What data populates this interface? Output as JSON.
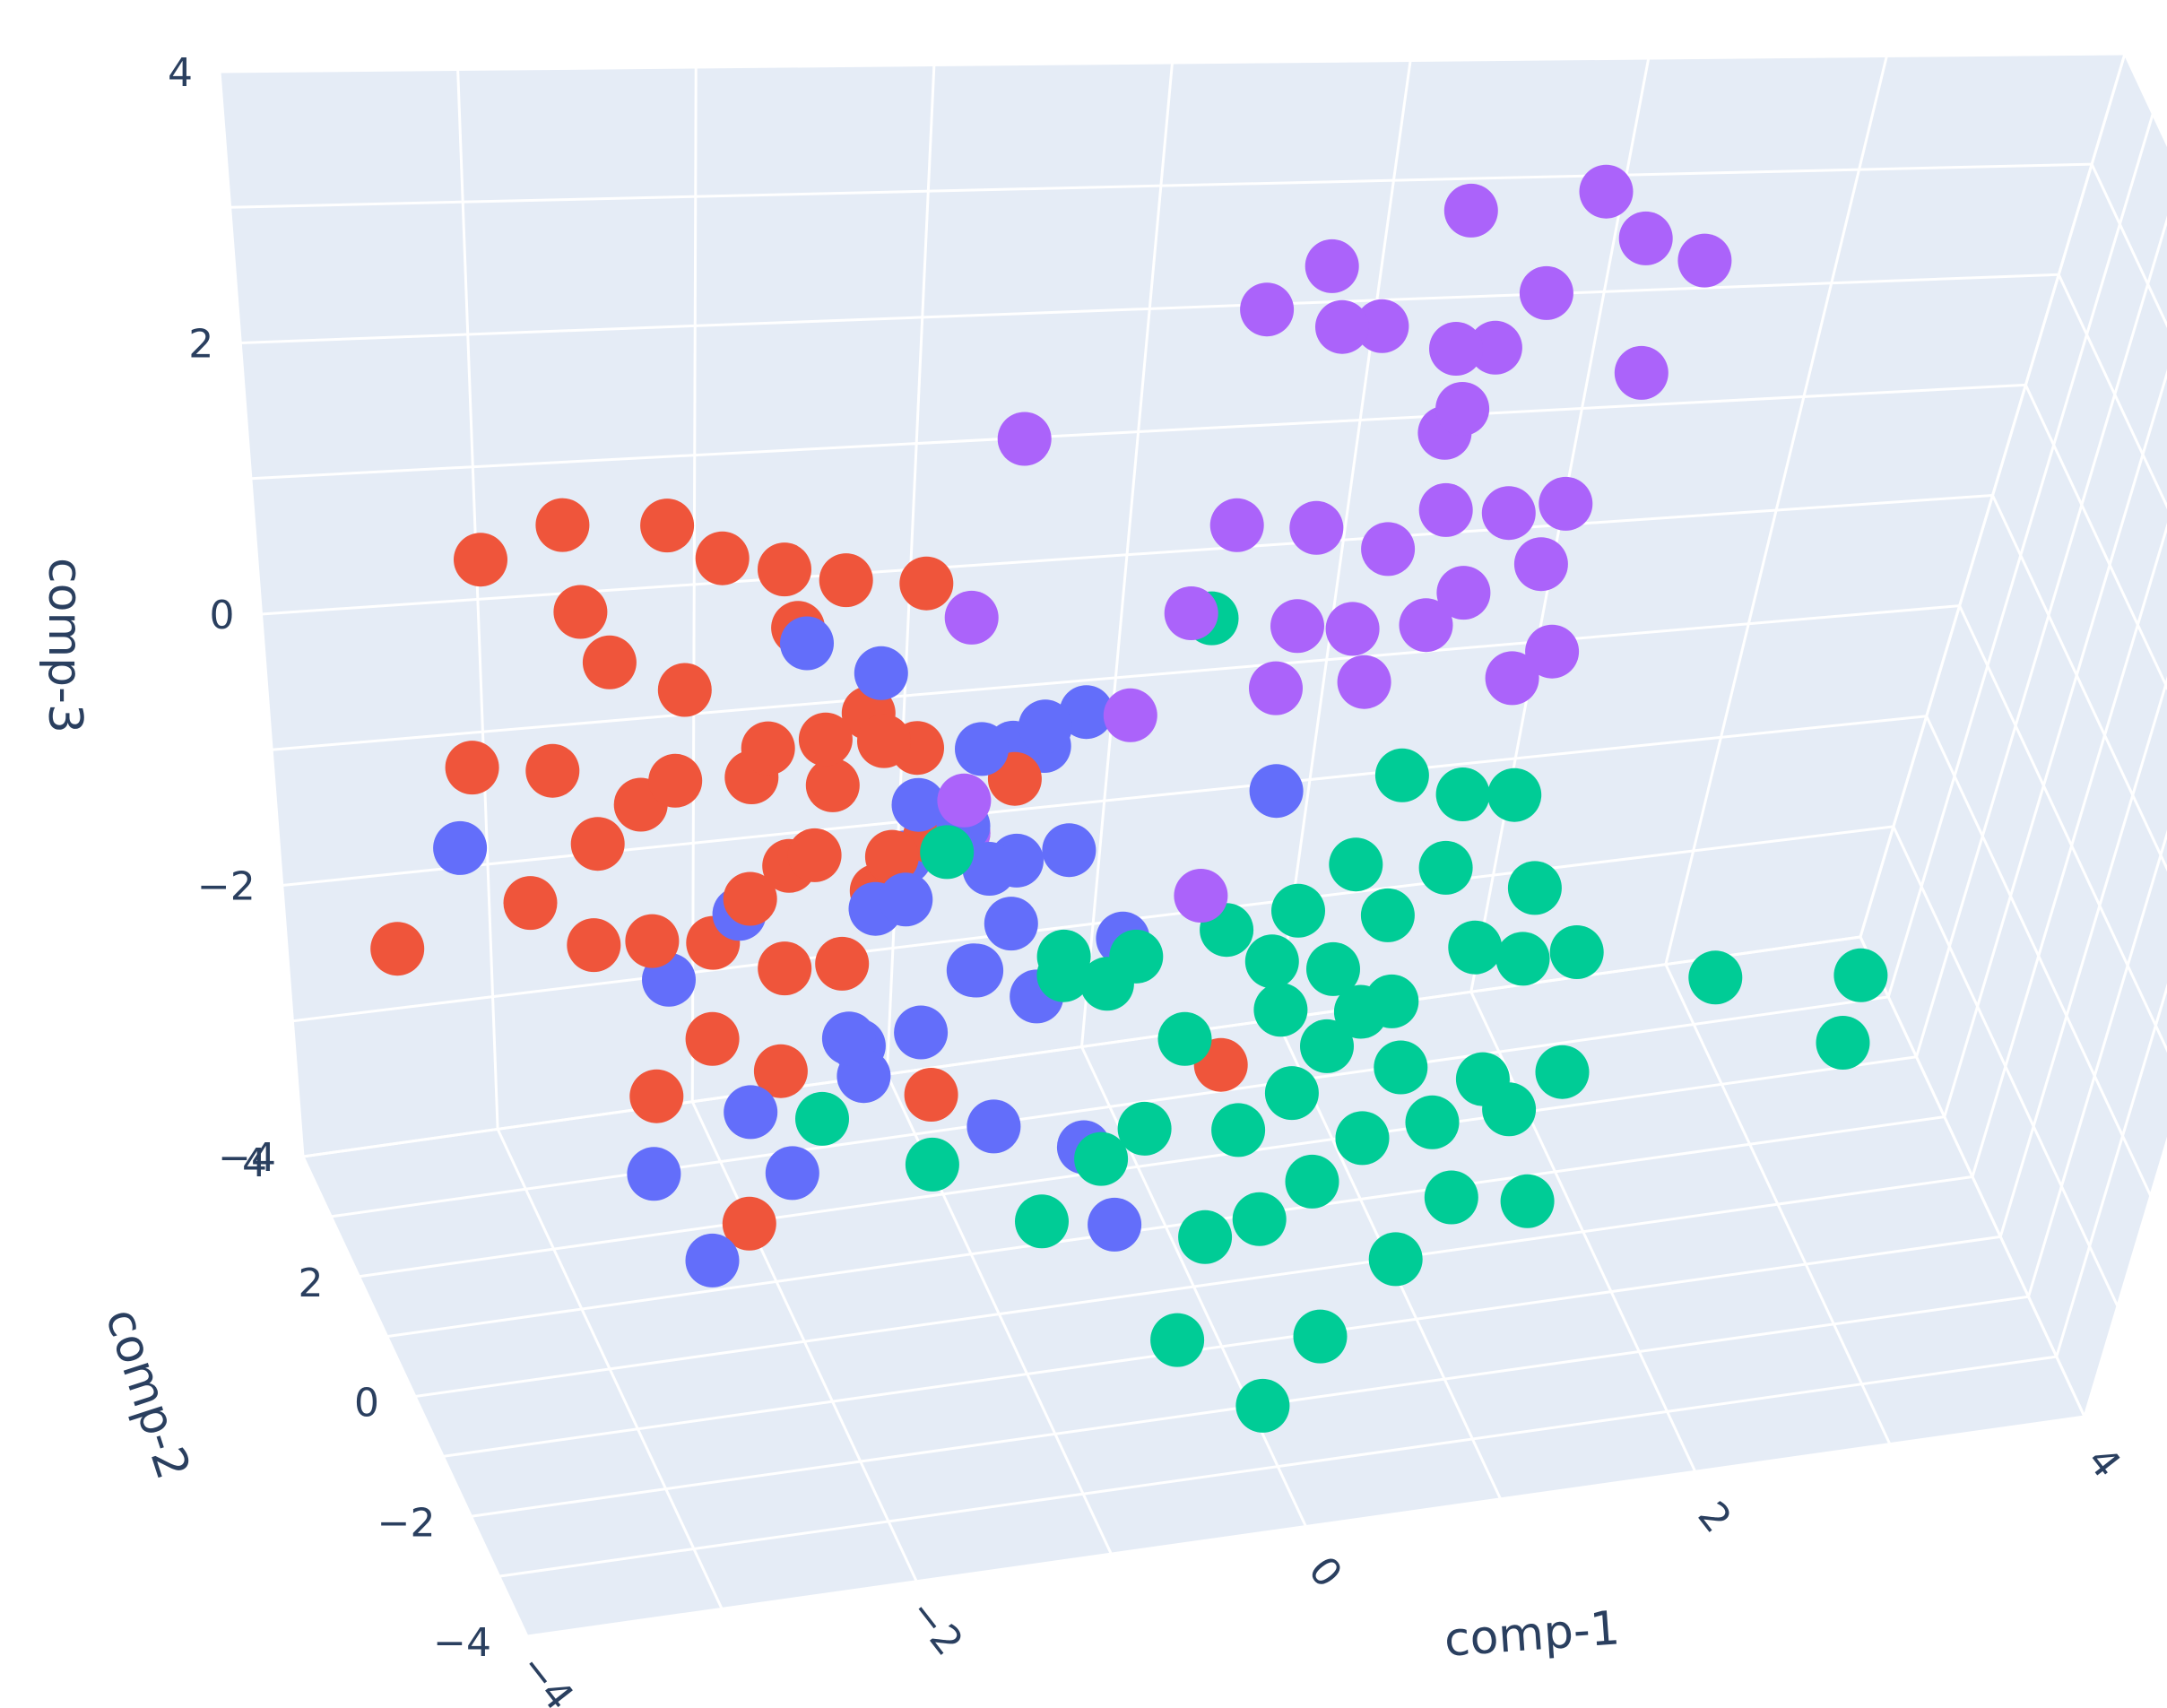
{
  "colors": {
    "pane": "#e5ecf6",
    "grid": "#ffffff",
    "text": "#2a3f5f",
    "cluster_colors": [
      "#636efa",
      "#ef553b",
      "#00cc96",
      "#ab63fa"
    ]
  },
  "chart_data": {
    "type": "scatter",
    "subtype": "scatter3d",
    "axes": {
      "x": {
        "label": "comp-1",
        "range": [
          -4,
          4
        ],
        "ticks": [
          "−4",
          "−2",
          "0",
          "2",
          "4"
        ],
        "tick_values": [
          -4,
          -2,
          0,
          2,
          4
        ]
      },
      "y": {
        "label": "comp-2",
        "range": [
          -4,
          4
        ],
        "ticks": [
          "−4",
          "−2",
          "0",
          "2",
          "4"
        ],
        "tick_values": [
          -4,
          -2,
          0,
          2,
          4
        ]
      },
      "z": {
        "label": "comp-3",
        "range": [
          -4,
          4
        ],
        "ticks": [
          "−4",
          "−2",
          "0",
          "2",
          "4"
        ],
        "tick_values": [
          -4,
          -2,
          0,
          2,
          4
        ]
      }
    },
    "grid": true,
    "legend": "none",
    "series": [
      {
        "color": "#636efa",
        "points": [
          [
            -2.0,
            0.0,
            1.4
          ],
          [
            -1.6,
            0.5,
            0.9
          ],
          [
            -1.2,
            0.0,
            0.5
          ],
          [
            -1.0,
            0.4,
            0.3
          ],
          [
            -0.8,
            0.8,
            0.1
          ],
          [
            -1.3,
            -0.2,
            0.0
          ],
          [
            -1.6,
            -0.5,
            -0.4
          ],
          [
            -1.1,
            0.3,
            -0.6
          ],
          [
            -0.9,
            0.8,
            -0.8
          ],
          [
            -1.2,
            -0.1,
            -1.2
          ],
          [
            -1.5,
            -0.4,
            -1.5
          ],
          [
            -1.8,
            -0.6,
            -1.7
          ],
          [
            -1.0,
            0.2,
            -1.0
          ],
          [
            -0.7,
            0.5,
            -0.6
          ],
          [
            -0.6,
            0.9,
            0.3
          ],
          [
            -0.9,
            0.1,
            0.6
          ],
          [
            -1.4,
            0.6,
            -0.2
          ],
          [
            -1.9,
            -0.8,
            -1.3
          ],
          [
            -2.4,
            -1.0,
            -1.7
          ],
          [
            -1.7,
            0.3,
            -1.9
          ],
          [
            -2.9,
            -1.2,
            -2.0
          ],
          [
            -2.2,
            -1.0,
            -2.2
          ],
          [
            -1.1,
            -0.2,
            -2.4
          ],
          [
            -0.8,
            0.6,
            -1.8
          ],
          [
            -2.3,
            0.1,
            -0.7
          ],
          [
            -2.6,
            0.4,
            -1.3
          ],
          [
            -3.6,
            0.0,
            0.0
          ],
          [
            -2.6,
            -1.0,
            -2.8
          ],
          [
            -0.6,
            0.1,
            -2.8
          ],
          [
            -0.5,
            -0.4,
            -3.2
          ],
          [
            0.3,
            0.8,
            -0.4
          ],
          [
            -0.4,
            0.6,
            -1.4
          ],
          [
            -1.4,
            1.0,
            -0.8
          ],
          [
            -1.7,
            -0.2,
            -0.6
          ],
          [
            -1.3,
            -0.7,
            -0.9
          ]
        ]
      },
      {
        "color": "#ef553b",
        "points": [
          [
            -3.4,
            0.3,
            2.0
          ],
          [
            -3.0,
            0.6,
            2.1
          ],
          [
            -2.6,
            0.1,
            2.3
          ],
          [
            -2.3,
            0.6,
            1.8
          ],
          [
            -2.0,
            0.8,
            1.6
          ],
          [
            -1.7,
            1.0,
            1.4
          ],
          [
            -1.3,
            1.3,
            1.2
          ],
          [
            -2.8,
            0.7,
            1.0
          ],
          [
            -2.5,
            0.4,
            0.9
          ],
          [
            -2.2,
            -0.2,
            0.7
          ],
          [
            -1.9,
            0.1,
            0.6
          ],
          [
            -1.6,
            0.9,
            0.4
          ],
          [
            -2.6,
            0.0,
            0.4
          ],
          [
            -2.2,
            0.4,
            0.2
          ],
          [
            -1.8,
            0.6,
            0.0
          ],
          [
            -1.4,
            0.7,
            0.2
          ],
          [
            -2.0,
            -0.3,
            -0.1
          ],
          [
            -1.6,
            0.0,
            -0.3
          ],
          [
            -1.2,
            0.5,
            -0.4
          ],
          [
            -3.1,
            0.5,
            0.3
          ],
          [
            -3.5,
            0.2,
            0.5
          ],
          [
            -3.3,
            -0.1,
            -0.4
          ],
          [
            -3.0,
            0.0,
            -0.8
          ],
          [
            -2.7,
            0.2,
            -0.9
          ],
          [
            -2.4,
            0.3,
            -1.0
          ],
          [
            -2.1,
            0.0,
            -1.1
          ],
          [
            -1.8,
            0.2,
            -1.2
          ],
          [
            -2.5,
            -0.4,
            -1.4
          ],
          [
            -2.2,
            -0.6,
            -1.6
          ],
          [
            -3.9,
            0.2,
            -0.8
          ],
          [
            -2.8,
            -0.6,
            -1.7
          ],
          [
            -2.4,
            -0.9,
            -2.6
          ],
          [
            -1.5,
            -0.8,
            -1.8
          ],
          [
            -1.3,
            0.9,
            -0.6
          ],
          [
            -2.9,
            0.9,
            1.3
          ],
          [
            -1.9,
            1.1,
            1.0
          ],
          [
            0.0,
            -0.2,
            -2.1
          ],
          [
            -1.0,
            0.3,
            0.1
          ],
          [
            -2.3,
            -0.3,
            -0.4
          ],
          [
            -1.6,
            0.5,
            -0.8
          ],
          [
            -2.7,
            0.5,
            0.0
          ],
          [
            -3.0,
            -0.3,
            0.1
          ],
          [
            -2.0,
            0.6,
            -0.6
          ],
          [
            -1.7,
            -0.4,
            0.8
          ]
        ]
      },
      {
        "color": "#00cc96",
        "points": [
          [
            0.0,
            1.3,
            0.8
          ],
          [
            -2.0,
            -0.6,
            -2.0
          ],
          [
            -0.6,
            -0.3,
            -1.3
          ],
          [
            0.0,
            0.0,
            -1.1
          ],
          [
            -0.5,
            -0.5,
            -1.0
          ],
          [
            0.4,
            0.4,
            -1.2
          ],
          [
            0.9,
            0.9,
            -0.4
          ],
          [
            1.2,
            0.9,
            -0.6
          ],
          [
            1.5,
            1.2,
            -0.8
          ],
          [
            1.1,
            0.5,
            -1.0
          ],
          [
            0.8,
            0.2,
            -1.2
          ],
          [
            0.5,
            -0.2,
            -1.4
          ],
          [
            -0.3,
            -0.9,
            -1.5
          ],
          [
            0.3,
            0.4,
            -1.6
          ],
          [
            1.3,
            0.5,
            -1.7
          ],
          [
            1.6,
            0.8,
            -2.0
          ],
          [
            1.9,
            1.0,
            -2.1
          ],
          [
            -0.7,
            -1.1,
            -2.3
          ],
          [
            -0.4,
            -0.5,
            -2.4
          ],
          [
            0.1,
            -0.3,
            -2.6
          ],
          [
            0.4,
            0.0,
            -2.5
          ],
          [
            0.6,
            0.3,
            -2.3
          ],
          [
            0.8,
            0.6,
            -2.2
          ],
          [
            1.0,
            0.9,
            -2.3
          ],
          [
            0.2,
            -0.6,
            -3.2
          ],
          [
            0.5,
            -0.3,
            -3.1
          ],
          [
            0.8,
            0.1,
            -3.0
          ],
          [
            1.2,
            0.4,
            -3.1
          ],
          [
            1.5,
            0.8,
            -3.0
          ],
          [
            1.7,
            1.0,
            -3.4
          ],
          [
            2.0,
            1.3,
            -3.3
          ],
          [
            1.3,
            0.1,
            -3.6
          ],
          [
            1.0,
            -0.2,
            -3.9
          ],
          [
            -0.2,
            -0.8,
            -4.0
          ],
          [
            0.6,
            -0.5,
            -4.3
          ],
          [
            1.8,
            0.6,
            -4.0
          ],
          [
            2.6,
            0.9,
            -2.4
          ],
          [
            3.4,
            1.2,
            -2.7
          ],
          [
            3.4,
            1.2,
            -3.3
          ],
          [
            -0.9,
            -0.9,
            -0.9
          ],
          [
            -1.5,
            -0.9,
            -2.3
          ],
          [
            0.3,
            0.0,
            -1.8
          ],
          [
            1.0,
            0.4,
            -2.6
          ],
          [
            0.0,
            -0.2,
            -3.5
          ],
          [
            -1.4,
            -0.4,
            -0.1
          ],
          [
            -0.9,
            -0.6,
            -3.0
          ],
          [
            -0.8,
            -0.2,
            -1.1
          ],
          [
            1.6,
            0.8,
            -1.4
          ],
          [
            0.6,
            0.1,
            -0.7
          ],
          [
            0.3,
            -0.7,
            -4.7
          ]
        ]
      },
      {
        "color": "#ab63fa",
        "points": [
          [
            0.9,
            1.1,
            4.2
          ],
          [
            1.5,
            1.4,
            4.2
          ],
          [
            1.7,
            1.4,
            3.8
          ],
          [
            0.0,
            0.5,
            3.7
          ],
          [
            0.3,
            0.8,
            3.9
          ],
          [
            1.3,
            1.3,
            3.4
          ],
          [
            2.0,
            1.6,
            3.5
          ],
          [
            0.4,
            1.0,
            3.3
          ],
          [
            0.6,
            1.2,
            3.2
          ],
          [
            0.9,
            1.0,
            3.1
          ],
          [
            1.1,
            1.2,
            3.0
          ],
          [
            0.9,
            0.6,
            2.8
          ],
          [
            1.8,
            1.5,
            2.6
          ],
          [
            0.9,
            1.0,
            2.4
          ],
          [
            -1.0,
            0.5,
            2.7
          ],
          [
            0.0,
            0.8,
            1.8
          ],
          [
            0.4,
            1.1,
            1.6
          ],
          [
            0.7,
            0.9,
            1.5
          ],
          [
            1.0,
            1.3,
            1.6
          ],
          [
            1.3,
            1.4,
            1.5
          ],
          [
            1.6,
            1.7,
            1.4
          ],
          [
            -1.2,
            0.5,
            1.3
          ],
          [
            -0.2,
            0.6,
            1.2
          ],
          [
            0.3,
            0.7,
            1.0
          ],
          [
            0.6,
            1.0,
            0.8
          ],
          [
            0.9,
            0.8,
            0.9
          ],
          [
            1.1,
            1.1,
            1.0
          ],
          [
            1.5,
            1.5,
            1.0
          ],
          [
            -0.5,
            0.2,
            0.6
          ],
          [
            0.2,
            0.5,
            0.6
          ],
          [
            0.7,
            1.1,
            0.3
          ],
          [
            1.4,
            1.2,
            0.2
          ],
          [
            1.6,
            1.4,
            0.3
          ],
          [
            -1.3,
            -0.2,
            0.2
          ],
          [
            -1.2,
            0.5,
            -0.4
          ],
          [
            -0.2,
            -0.4,
            -0.6
          ]
        ]
      }
    ]
  }
}
